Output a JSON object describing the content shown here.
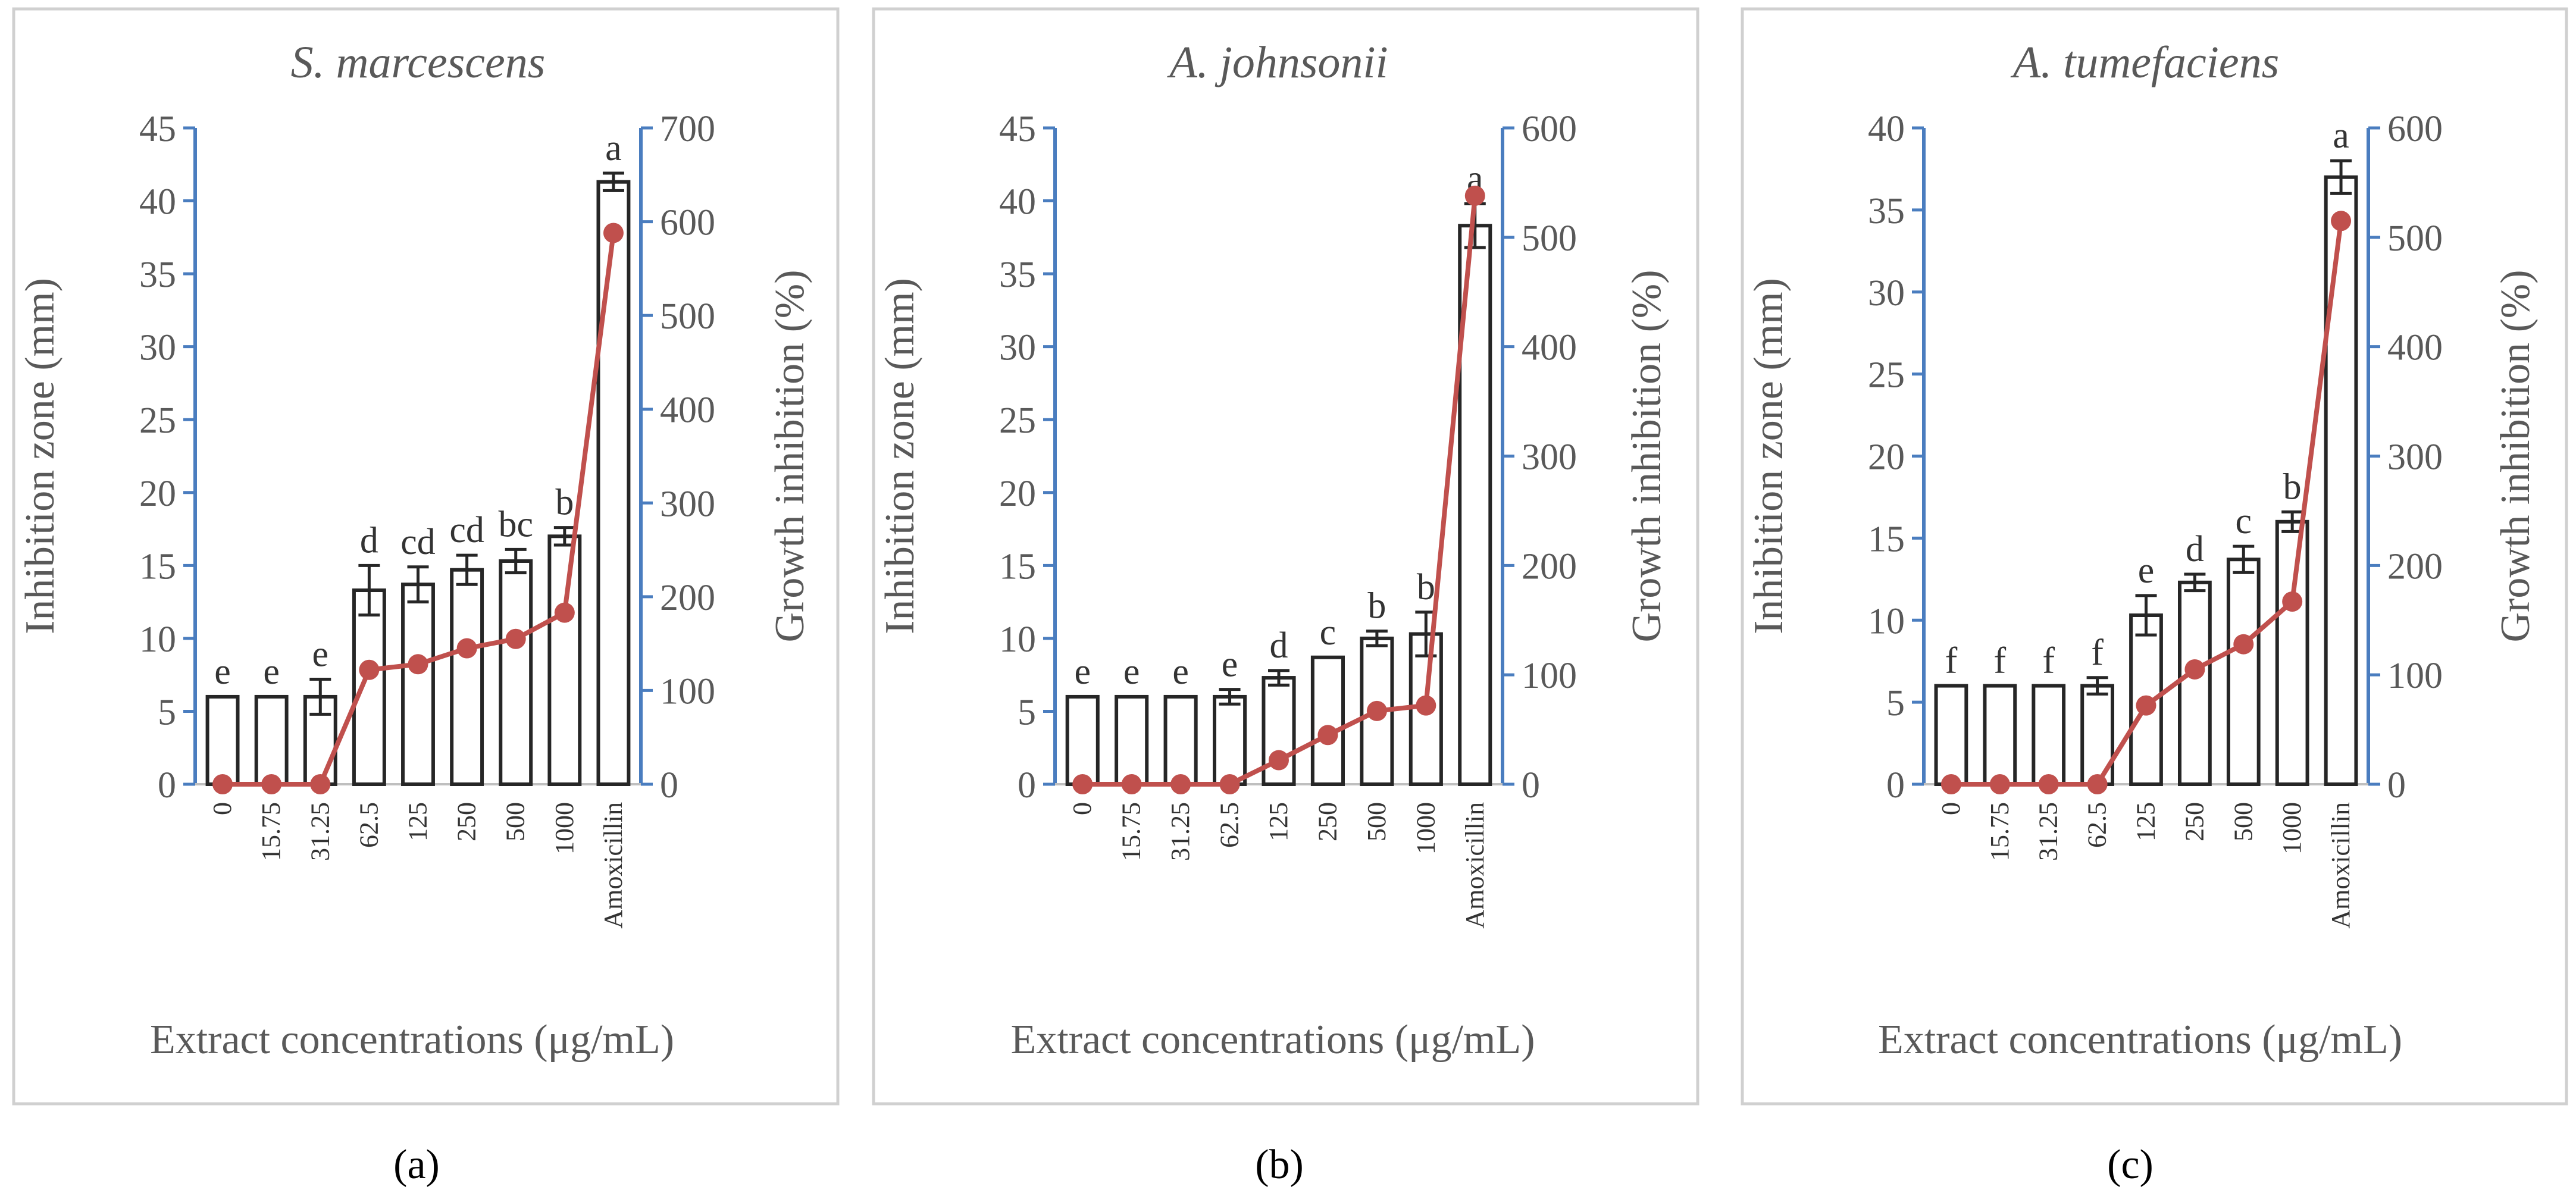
{
  "chart_data": [
    {
      "type": "bar",
      "panel_label": "(a)",
      "title": "S. marcescens",
      "xlabel": "Extract concentrations (μg/mL)",
      "ylabel": "Inhibition zone (mm)",
      "y2label": "Growth inhibition (%)",
      "categories": [
        "0",
        "15.75",
        "31.25",
        "62.5",
        "125",
        "250",
        "500",
        "1000",
        "Amoxicillin"
      ],
      "ylim": [
        0,
        45
      ],
      "yticks": [
        0,
        5,
        10,
        15,
        20,
        25,
        30,
        35,
        40,
        45
      ],
      "y2lim": [
        0,
        700
      ],
      "y2ticks": [
        0,
        100,
        200,
        300,
        400,
        500,
        600,
        700
      ],
      "series": [
        {
          "name": "Inhibition zone",
          "axis": "left",
          "kind": "bar",
          "values": [
            6,
            6,
            6,
            13.3,
            13.7,
            14.7,
            15.3,
            17.0,
            41.3
          ],
          "errors": [
            0,
            0,
            1.2,
            1.7,
            1.2,
            1.0,
            0.8,
            0.6,
            0.6
          ],
          "labels": [
            "e",
            "e",
            "e",
            "d",
            "cd",
            "cd",
            "bc",
            "b",
            "a"
          ]
        },
        {
          "name": "Growth inhibition",
          "axis": "right",
          "kind": "line",
          "values": [
            0,
            0,
            0,
            122,
            128,
            145,
            155,
            183,
            588
          ]
        }
      ]
    },
    {
      "type": "bar",
      "panel_label": "(b)",
      "title": "A. johnsonii",
      "xlabel": "Extract concentrations (μg/mL)",
      "ylabel": "Inhibition zone (mm)",
      "y2label": "Growth inhibition (%)",
      "categories": [
        "0",
        "15.75",
        "31.25",
        "62.5",
        "125",
        "250",
        "500",
        "1000",
        "Amoxicillin"
      ],
      "ylim": [
        0,
        45
      ],
      "yticks": [
        0,
        5,
        10,
        15,
        20,
        25,
        30,
        35,
        40,
        45
      ],
      "y2lim": [
        0,
        600
      ],
      "y2ticks": [
        0,
        100,
        200,
        300,
        400,
        500,
        600
      ],
      "series": [
        {
          "name": "Inhibition zone",
          "axis": "left",
          "kind": "bar",
          "values": [
            6,
            6,
            6,
            6,
            7.3,
            8.7,
            10.0,
            10.3,
            38.3
          ],
          "errors": [
            0,
            0,
            0,
            0.5,
            0.5,
            0,
            0.5,
            1.5,
            1.5
          ],
          "labels": [
            "e",
            "e",
            "e",
            "e",
            "d",
            "c",
            "b",
            "b",
            "a"
          ]
        },
        {
          "name": "Growth inhibition",
          "axis": "right",
          "kind": "line",
          "values": [
            0,
            0,
            0,
            0,
            22,
            45,
            67,
            72,
            538
          ]
        }
      ]
    },
    {
      "type": "bar",
      "panel_label": "(c)",
      "title": "A. tumefaciens",
      "xlabel": "Extract concentrations (μg/mL)",
      "ylabel": "Inhibition zone (mm)",
      "y2label": "Growth inhibition (%)",
      "categories": [
        "0",
        "15.75",
        "31.25",
        "62.5",
        "125",
        "250",
        "500",
        "1000",
        "Amoxicillin"
      ],
      "ylim": [
        0,
        40
      ],
      "yticks": [
        0,
        5,
        10,
        15,
        20,
        25,
        30,
        35,
        40
      ],
      "y2lim": [
        0,
        600
      ],
      "y2ticks": [
        0,
        100,
        200,
        300,
        400,
        500,
        600
      ],
      "series": [
        {
          "name": "Inhibition zone",
          "axis": "left",
          "kind": "bar",
          "values": [
            6,
            6,
            6,
            6,
            10.3,
            12.3,
            13.7,
            16.0,
            37.0
          ],
          "errors": [
            0,
            0,
            0,
            0.5,
            1.2,
            0.5,
            0.8,
            0.6,
            1.0
          ],
          "labels": [
            "f",
            "f",
            "f",
            "f",
            "e",
            "d",
            "c",
            "b",
            "a"
          ]
        },
        {
          "name": "Growth inhibition",
          "axis": "right",
          "kind": "line",
          "values": [
            0,
            0,
            0,
            0,
            72,
            105,
            128,
            167,
            515
          ]
        }
      ]
    }
  ],
  "colors": {
    "bar_edge": "#262626",
    "axis": "#4a7dbf",
    "line": "#c0504d",
    "frame": "#d0d0d0",
    "text": "#595959"
  }
}
